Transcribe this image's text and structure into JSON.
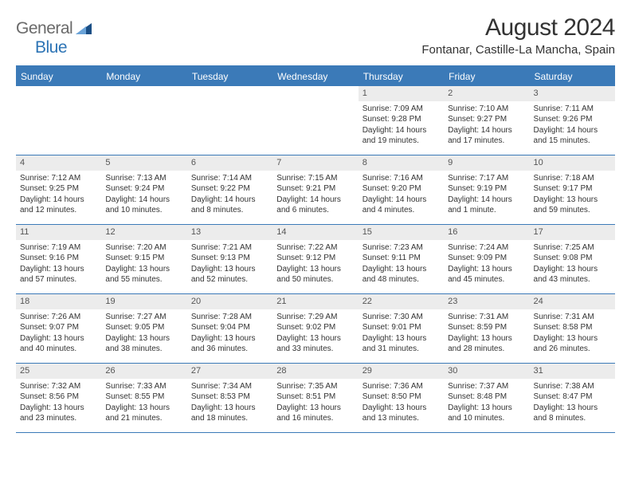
{
  "logo": {
    "text1": "General",
    "text2": "Blue"
  },
  "title": "August 2024",
  "location": "Fontanar, Castille-La Mancha, Spain",
  "daynames": [
    "Sunday",
    "Monday",
    "Tuesday",
    "Wednesday",
    "Thursday",
    "Friday",
    "Saturday"
  ],
  "colors": {
    "header_bar": "#3b7ab8",
    "daynum_bg": "#ececec",
    "logo_gray": "#6a6a6a",
    "logo_blue": "#2d74b5",
    "tri_light": "#6aa3d8",
    "tri_dark": "#1b4f86"
  },
  "weeks": [
    [
      {
        "day": "",
        "sunrise": "",
        "sunset": "",
        "daylight1": "",
        "daylight2": ""
      },
      {
        "day": "",
        "sunrise": "",
        "sunset": "",
        "daylight1": "",
        "daylight2": ""
      },
      {
        "day": "",
        "sunrise": "",
        "sunset": "",
        "daylight1": "",
        "daylight2": ""
      },
      {
        "day": "",
        "sunrise": "",
        "sunset": "",
        "daylight1": "",
        "daylight2": ""
      },
      {
        "day": "1",
        "sunrise": "Sunrise: 7:09 AM",
        "sunset": "Sunset: 9:28 PM",
        "daylight1": "Daylight: 14 hours",
        "daylight2": "and 19 minutes."
      },
      {
        "day": "2",
        "sunrise": "Sunrise: 7:10 AM",
        "sunset": "Sunset: 9:27 PM",
        "daylight1": "Daylight: 14 hours",
        "daylight2": "and 17 minutes."
      },
      {
        "day": "3",
        "sunrise": "Sunrise: 7:11 AM",
        "sunset": "Sunset: 9:26 PM",
        "daylight1": "Daylight: 14 hours",
        "daylight2": "and 15 minutes."
      }
    ],
    [
      {
        "day": "4",
        "sunrise": "Sunrise: 7:12 AM",
        "sunset": "Sunset: 9:25 PM",
        "daylight1": "Daylight: 14 hours",
        "daylight2": "and 12 minutes."
      },
      {
        "day": "5",
        "sunrise": "Sunrise: 7:13 AM",
        "sunset": "Sunset: 9:24 PM",
        "daylight1": "Daylight: 14 hours",
        "daylight2": "and 10 minutes."
      },
      {
        "day": "6",
        "sunrise": "Sunrise: 7:14 AM",
        "sunset": "Sunset: 9:22 PM",
        "daylight1": "Daylight: 14 hours",
        "daylight2": "and 8 minutes."
      },
      {
        "day": "7",
        "sunrise": "Sunrise: 7:15 AM",
        "sunset": "Sunset: 9:21 PM",
        "daylight1": "Daylight: 14 hours",
        "daylight2": "and 6 minutes."
      },
      {
        "day": "8",
        "sunrise": "Sunrise: 7:16 AM",
        "sunset": "Sunset: 9:20 PM",
        "daylight1": "Daylight: 14 hours",
        "daylight2": "and 4 minutes."
      },
      {
        "day": "9",
        "sunrise": "Sunrise: 7:17 AM",
        "sunset": "Sunset: 9:19 PM",
        "daylight1": "Daylight: 14 hours",
        "daylight2": "and 1 minute."
      },
      {
        "day": "10",
        "sunrise": "Sunrise: 7:18 AM",
        "sunset": "Sunset: 9:17 PM",
        "daylight1": "Daylight: 13 hours",
        "daylight2": "and 59 minutes."
      }
    ],
    [
      {
        "day": "11",
        "sunrise": "Sunrise: 7:19 AM",
        "sunset": "Sunset: 9:16 PM",
        "daylight1": "Daylight: 13 hours",
        "daylight2": "and 57 minutes."
      },
      {
        "day": "12",
        "sunrise": "Sunrise: 7:20 AM",
        "sunset": "Sunset: 9:15 PM",
        "daylight1": "Daylight: 13 hours",
        "daylight2": "and 55 minutes."
      },
      {
        "day": "13",
        "sunrise": "Sunrise: 7:21 AM",
        "sunset": "Sunset: 9:13 PM",
        "daylight1": "Daylight: 13 hours",
        "daylight2": "and 52 minutes."
      },
      {
        "day": "14",
        "sunrise": "Sunrise: 7:22 AM",
        "sunset": "Sunset: 9:12 PM",
        "daylight1": "Daylight: 13 hours",
        "daylight2": "and 50 minutes."
      },
      {
        "day": "15",
        "sunrise": "Sunrise: 7:23 AM",
        "sunset": "Sunset: 9:11 PM",
        "daylight1": "Daylight: 13 hours",
        "daylight2": "and 48 minutes."
      },
      {
        "day": "16",
        "sunrise": "Sunrise: 7:24 AM",
        "sunset": "Sunset: 9:09 PM",
        "daylight1": "Daylight: 13 hours",
        "daylight2": "and 45 minutes."
      },
      {
        "day": "17",
        "sunrise": "Sunrise: 7:25 AM",
        "sunset": "Sunset: 9:08 PM",
        "daylight1": "Daylight: 13 hours",
        "daylight2": "and 43 minutes."
      }
    ],
    [
      {
        "day": "18",
        "sunrise": "Sunrise: 7:26 AM",
        "sunset": "Sunset: 9:07 PM",
        "daylight1": "Daylight: 13 hours",
        "daylight2": "and 40 minutes."
      },
      {
        "day": "19",
        "sunrise": "Sunrise: 7:27 AM",
        "sunset": "Sunset: 9:05 PM",
        "daylight1": "Daylight: 13 hours",
        "daylight2": "and 38 minutes."
      },
      {
        "day": "20",
        "sunrise": "Sunrise: 7:28 AM",
        "sunset": "Sunset: 9:04 PM",
        "daylight1": "Daylight: 13 hours",
        "daylight2": "and 36 minutes."
      },
      {
        "day": "21",
        "sunrise": "Sunrise: 7:29 AM",
        "sunset": "Sunset: 9:02 PM",
        "daylight1": "Daylight: 13 hours",
        "daylight2": "and 33 minutes."
      },
      {
        "day": "22",
        "sunrise": "Sunrise: 7:30 AM",
        "sunset": "Sunset: 9:01 PM",
        "daylight1": "Daylight: 13 hours",
        "daylight2": "and 31 minutes."
      },
      {
        "day": "23",
        "sunrise": "Sunrise: 7:31 AM",
        "sunset": "Sunset: 8:59 PM",
        "daylight1": "Daylight: 13 hours",
        "daylight2": "and 28 minutes."
      },
      {
        "day": "24",
        "sunrise": "Sunrise: 7:31 AM",
        "sunset": "Sunset: 8:58 PM",
        "daylight1": "Daylight: 13 hours",
        "daylight2": "and 26 minutes."
      }
    ],
    [
      {
        "day": "25",
        "sunrise": "Sunrise: 7:32 AM",
        "sunset": "Sunset: 8:56 PM",
        "daylight1": "Daylight: 13 hours",
        "daylight2": "and 23 minutes."
      },
      {
        "day": "26",
        "sunrise": "Sunrise: 7:33 AM",
        "sunset": "Sunset: 8:55 PM",
        "daylight1": "Daylight: 13 hours",
        "daylight2": "and 21 minutes."
      },
      {
        "day": "27",
        "sunrise": "Sunrise: 7:34 AM",
        "sunset": "Sunset: 8:53 PM",
        "daylight1": "Daylight: 13 hours",
        "daylight2": "and 18 minutes."
      },
      {
        "day": "28",
        "sunrise": "Sunrise: 7:35 AM",
        "sunset": "Sunset: 8:51 PM",
        "daylight1": "Daylight: 13 hours",
        "daylight2": "and 16 minutes."
      },
      {
        "day": "29",
        "sunrise": "Sunrise: 7:36 AM",
        "sunset": "Sunset: 8:50 PM",
        "daylight1": "Daylight: 13 hours",
        "daylight2": "and 13 minutes."
      },
      {
        "day": "30",
        "sunrise": "Sunrise: 7:37 AM",
        "sunset": "Sunset: 8:48 PM",
        "daylight1": "Daylight: 13 hours",
        "daylight2": "and 10 minutes."
      },
      {
        "day": "31",
        "sunrise": "Sunrise: 7:38 AM",
        "sunset": "Sunset: 8:47 PM",
        "daylight1": "Daylight: 13 hours",
        "daylight2": "and 8 minutes."
      }
    ]
  ]
}
